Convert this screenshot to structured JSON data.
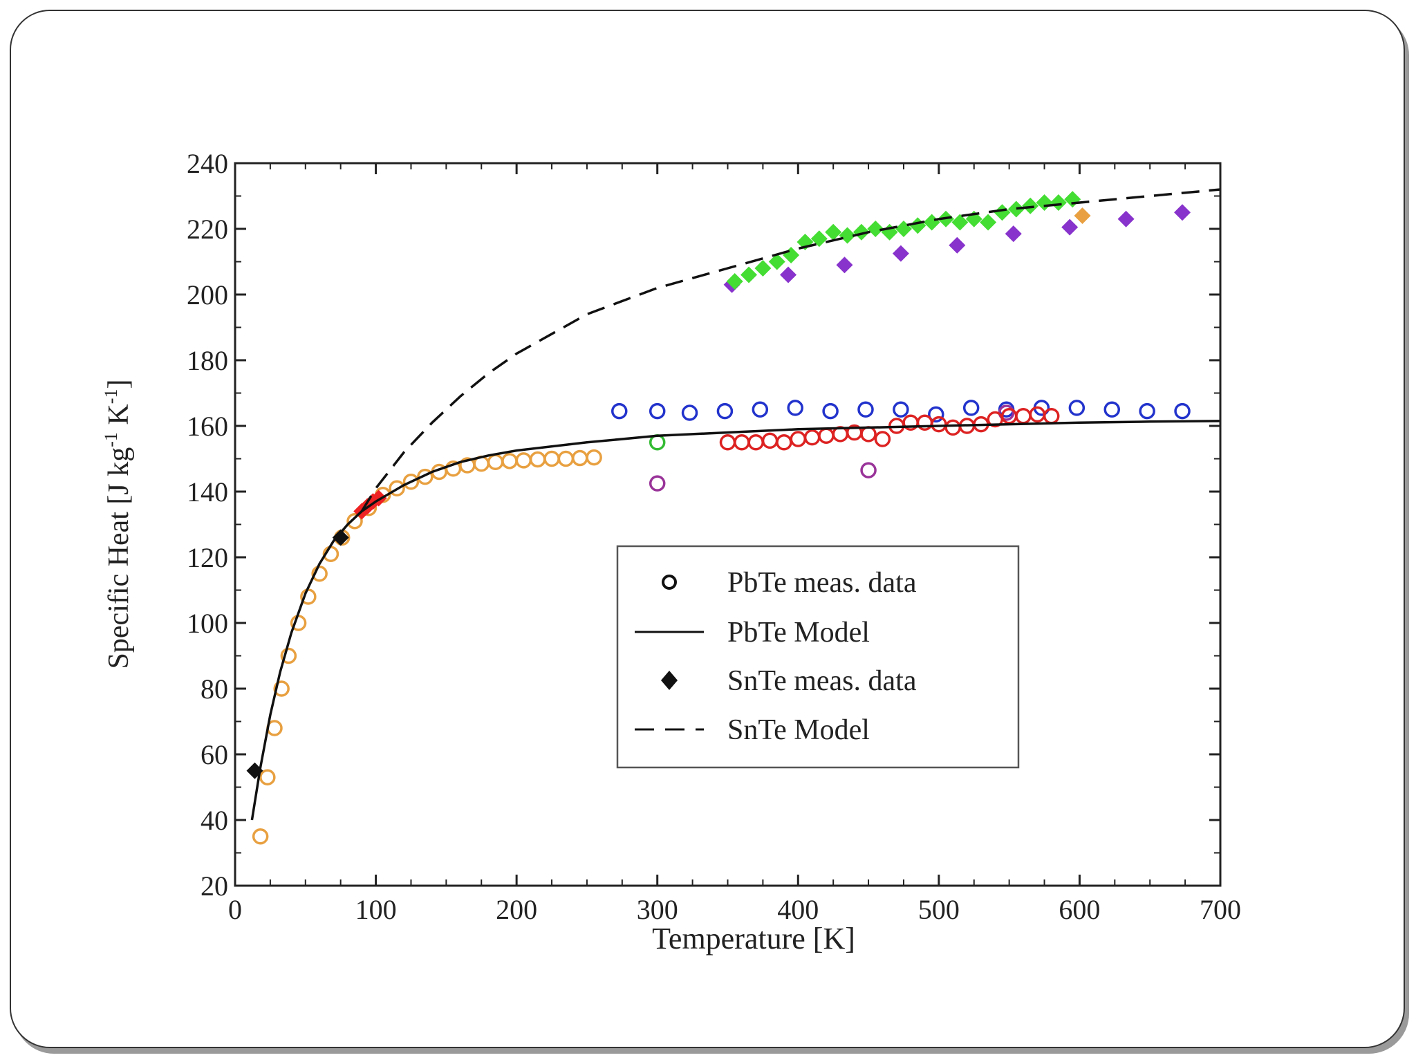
{
  "chart_data": {
    "type": "scatter",
    "title": "",
    "xlabel": "Temperature [K]",
    "ylabel": "Specific Heat [J kg",
    "ylabel_sup1": "-1",
    "ylabel_mid": " K",
    "ylabel_sup2": "-1",
    "ylabel_end": "]",
    "xlim": [
      0,
      700
    ],
    "ylim": [
      20,
      240
    ],
    "xticks": [
      "0",
      "100",
      "200",
      "300",
      "400",
      "500",
      "600",
      "700"
    ],
    "yticks": [
      "20",
      "40",
      "60",
      "80",
      "100",
      "120",
      "140",
      "160",
      "180",
      "200",
      "220",
      "240"
    ],
    "legend": {
      "position": "lower-right",
      "entries": [
        {
          "label": "PbTe meas. data",
          "kind": "open-circle"
        },
        {
          "label": "PbTe Model",
          "kind": "solid-line"
        },
        {
          "label": "SnTe meas. data",
          "kind": "filled-diamond"
        },
        {
          "label": "SnTe Model",
          "kind": "dashed-line"
        }
      ]
    },
    "series": [
      {
        "name": "PbTe Model",
        "kind": "line",
        "style": "solid",
        "color": "#111111",
        "x": [
          12,
          18,
          25,
          32,
          40,
          50,
          60,
          70,
          80,
          90,
          100,
          120,
          140,
          160,
          180,
          200,
          250,
          300,
          350,
          400,
          450,
          500,
          550,
          600,
          650,
          700
        ],
        "y": [
          40,
          56,
          72,
          85,
          97,
          109,
          118,
          125,
          130,
          134,
          137,
          142,
          146,
          149,
          151,
          152.5,
          155,
          157,
          158,
          159,
          159.5,
          160,
          160.5,
          161,
          161.3,
          161.5
        ]
      },
      {
        "name": "SnTe Model",
        "kind": "line",
        "style": "dashed",
        "color": "#111111",
        "x": [
          90,
          100,
          120,
          140,
          160,
          180,
          200,
          250,
          300,
          350,
          400,
          450,
          500,
          550,
          600,
          650,
          700
        ],
        "y": [
          134,
          141,
          152,
          161,
          169,
          176,
          182,
          194,
          202,
          208,
          214,
          219,
          223,
          226,
          228,
          230,
          232
        ]
      },
      {
        "name": "PbTe meas. (orange)",
        "kind": "open-circle",
        "color": "#e8a040",
        "x": [
          18,
          23,
          28,
          33,
          38,
          45,
          52,
          60,
          68,
          76,
          85,
          95,
          105,
          115,
          125,
          135,
          145,
          155,
          165,
          175,
          185,
          195,
          205,
          215,
          225,
          235,
          245,
          255
        ],
        "y": [
          35,
          53,
          68,
          80,
          90,
          100,
          108,
          115,
          121,
          126,
          131,
          135,
          139,
          141,
          143,
          144.5,
          146,
          147,
          148,
          148.5,
          149,
          149.3,
          149.5,
          149.8,
          150,
          150,
          150.2,
          150.4
        ]
      },
      {
        "name": "PbTe meas. (blue)",
        "kind": "open-circle",
        "color": "#2233cc",
        "x": [
          273,
          300,
          323,
          348,
          373,
          398,
          423,
          448,
          473,
          498,
          523,
          548,
          573,
          598,
          623,
          648,
          673
        ],
        "y": [
          164.5,
          164.5,
          164,
          164.5,
          165,
          165.5,
          164.5,
          165,
          165,
          163.5,
          165.5,
          165,
          165.5,
          165.5,
          165,
          164.5,
          164.5
        ]
      },
      {
        "name": "PbTe meas. (purple)",
        "kind": "open-circle",
        "color": "#993399",
        "x": [
          300,
          450,
          548
        ],
        "y": [
          142.5,
          146.5,
          164
        ]
      },
      {
        "name": "PbTe meas. (green)",
        "kind": "open-circle",
        "color": "#33bb33",
        "x": [
          300
        ],
        "y": [
          155
        ]
      },
      {
        "name": "PbTe meas. (red)",
        "kind": "open-circle",
        "color": "#dd2222",
        "x": [
          350,
          360,
          370,
          380,
          390,
          400,
          410,
          420,
          430,
          440,
          450,
          460,
          470,
          480,
          490,
          500,
          510,
          520,
          530,
          540,
          550,
          560,
          570,
          580
        ],
        "y": [
          155,
          155,
          155,
          155.5,
          155,
          156,
          156.5,
          157,
          157.5,
          158,
          157.5,
          156,
          160,
          161,
          161,
          160.5,
          159.5,
          160,
          160.5,
          162,
          163,
          163,
          163.5,
          163
        ]
      },
      {
        "name": "SnTe meas. (red)",
        "kind": "filled-diamond",
        "color": "#ee2222",
        "x": [
          90,
          94,
          98,
          102
        ],
        "y": [
          134,
          135.5,
          137,
          138
        ]
      },
      {
        "name": "SnTe meas. (black)",
        "kind": "filled-diamond",
        "color": "#111111",
        "x": [
          14,
          75
        ],
        "y": [
          55,
          126
        ]
      },
      {
        "name": "SnTe meas. (purple)",
        "kind": "filled-diamond",
        "color": "#8833cc",
        "x": [
          353,
          393,
          433,
          473,
          513,
          553,
          593,
          633,
          673
        ],
        "y": [
          203,
          206,
          209,
          212.5,
          215,
          218.5,
          220.5,
          223,
          225
        ]
      },
      {
        "name": "SnTe meas. (green)",
        "kind": "filled-diamond",
        "color": "#44dd33",
        "x": [
          355,
          365,
          375,
          385,
          395,
          405,
          415,
          425,
          435,
          445,
          455,
          465,
          475,
          485,
          495,
          505,
          515,
          525,
          535,
          545,
          555,
          565,
          575,
          585,
          595
        ],
        "y": [
          204,
          206,
          208,
          210,
          212,
          216,
          217,
          219,
          218,
          219,
          220,
          219,
          220,
          221,
          222,
          223,
          222,
          223,
          222,
          225,
          226,
          227,
          228,
          228,
          229
        ]
      },
      {
        "name": "SnTe meas. (orange)",
        "kind": "filled-diamond",
        "color": "#e8a040",
        "x": [
          602
        ],
        "y": [
          224
        ]
      }
    ]
  }
}
